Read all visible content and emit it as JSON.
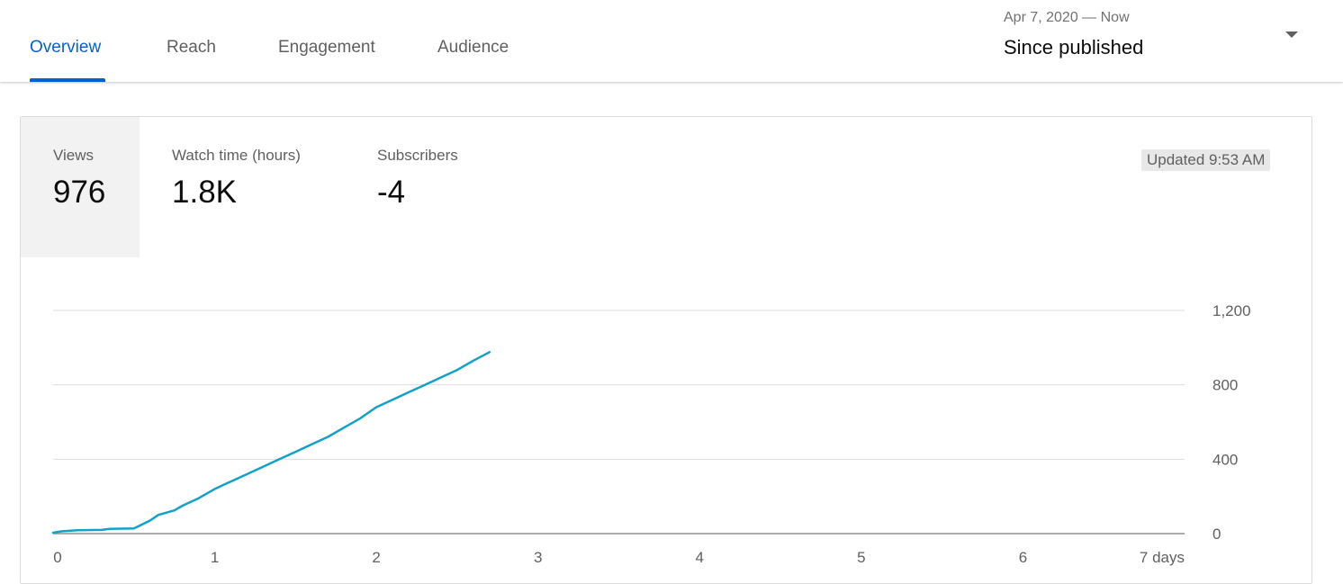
{
  "tabs": [
    {
      "label": "Overview",
      "active": true
    },
    {
      "label": "Reach",
      "active": false
    },
    {
      "label": "Engagement",
      "active": false
    },
    {
      "label": "Audience",
      "active": false
    }
  ],
  "date_range": {
    "dates": "Apr 7, 2020 — Now",
    "label": "Since published"
  },
  "metrics": [
    {
      "label": "Views",
      "value": "976",
      "selected": true
    },
    {
      "label": "Watch time (hours)",
      "value": "1.8K",
      "selected": false
    },
    {
      "label": "Subscribers",
      "value": "-4",
      "selected": false
    }
  ],
  "updated": "Updated 9:53 AM",
  "colors": {
    "accent": "#065fd4",
    "line": "#12a1c8",
    "grid": "#dedede",
    "axis": "#909090"
  },
  "chart_data": {
    "type": "line",
    "x_unit": "days",
    "x_ticks": [
      "0",
      "1",
      "2",
      "3",
      "4",
      "5",
      "6",
      "7 days"
    ],
    "y_ticks": [
      "0",
      "400",
      "800",
      "1,200"
    ],
    "xlim": [
      0,
      7
    ],
    "ylim": [
      0,
      1200
    ],
    "series": [
      {
        "x": [
          0,
          0.05,
          0.1,
          0.15,
          0.3,
          0.35,
          0.5,
          0.6,
          0.65,
          0.75,
          0.8,
          0.9,
          1.0,
          1.1,
          1.2,
          1.3,
          1.4,
          1.5,
          1.6,
          1.7,
          1.8,
          1.9,
          2.0,
          2.1,
          2.2,
          2.3,
          2.4,
          2.5,
          2.6,
          2.7
        ],
        "y": [
          5,
          12,
          15,
          18,
          20,
          25,
          28,
          70,
          100,
          125,
          150,
          190,
          240,
          280,
          320,
          360,
          400,
          440,
          480,
          520,
          570,
          620,
          680,
          720,
          760,
          800,
          840,
          880,
          930,
          976
        ]
      }
    ]
  }
}
